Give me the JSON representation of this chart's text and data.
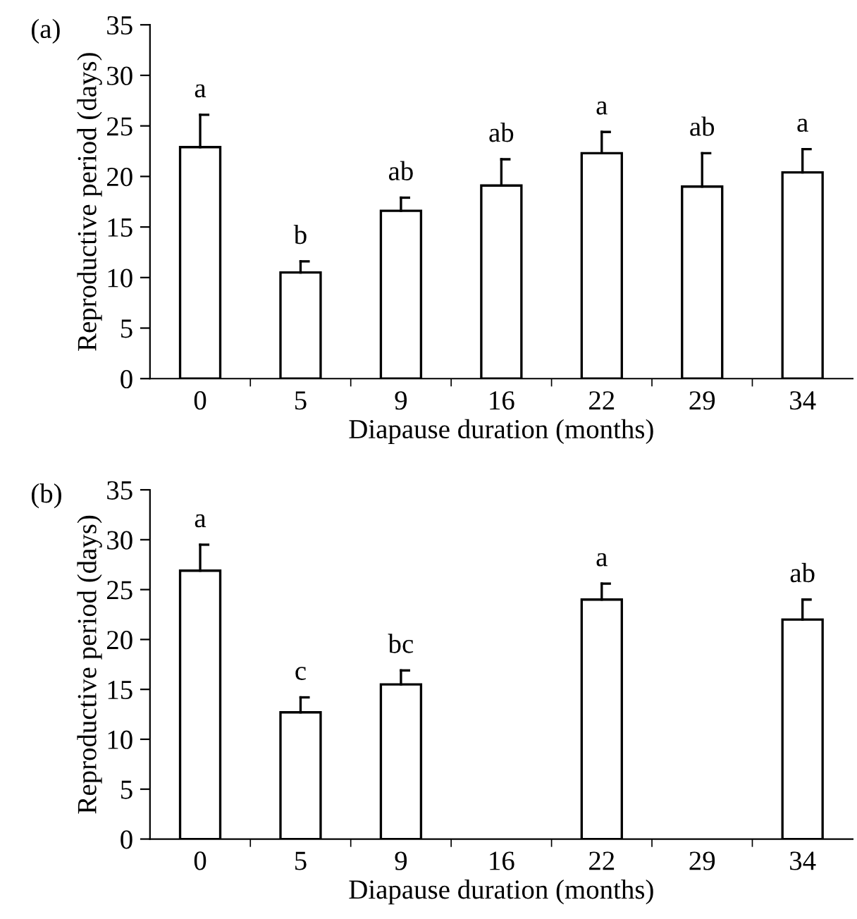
{
  "chart_data": [
    {
      "type": "bar",
      "title": "(a)",
      "xlabel": "Diapause duration (months)",
      "ylabel": "Reproductive period (days)",
      "categories": [
        "0",
        "5",
        "9",
        "16",
        "22",
        "29",
        "34"
      ],
      "values": [
        22.9,
        10.5,
        16.6,
        19.1,
        22.3,
        19.0,
        20.4
      ],
      "color": "#ffffff",
      "errors": [
        [
          22.9,
          26.1
        ],
        [
          10.5,
          11.6
        ],
        [
          16.6,
          17.9
        ],
        [
          19.1,
          21.7
        ],
        [
          22.3,
          24.4
        ],
        [
          19.0,
          22.3
        ],
        [
          20.4,
          22.7
        ]
      ],
      "ylim": [
        0,
        35
      ],
      "yticks": [
        0,
        5,
        10,
        15,
        20,
        25,
        30,
        35
      ],
      "grid": false,
      "annotations": [
        {
          "text": "a",
          "x": "0",
          "y": 26.1
        },
        {
          "text": "b",
          "x": "5",
          "y": 11.6
        },
        {
          "text": "ab",
          "x": "9",
          "y": 17.9
        },
        {
          "text": "ab",
          "x": "16",
          "y": 21.7
        },
        {
          "text": "a",
          "x": "22",
          "y": 24.4
        },
        {
          "text": "ab",
          "x": "29",
          "y": 22.3
        },
        {
          "text": "a",
          "x": "34",
          "y": 22.7
        }
      ]
    },
    {
      "type": "bar",
      "title": "(b)",
      "xlabel": "Diapause duration (months)",
      "ylabel": "Reproductive period (days)",
      "categories": [
        "0",
        "5",
        "9",
        "16",
        "22",
        "29",
        "34"
      ],
      "values": [
        26.9,
        12.7,
        15.5,
        null,
        24.0,
        null,
        22.0
      ],
      "color": "#ffffff",
      "errors": [
        [
          26.9,
          29.5
        ],
        [
          12.7,
          14.2
        ],
        [
          15.5,
          16.9
        ],
        null,
        [
          24.0,
          25.6
        ],
        null,
        [
          22.0,
          24.0
        ]
      ],
      "ylim": [
        0,
        35
      ],
      "yticks": [
        0,
        5,
        10,
        15,
        20,
        25,
        30,
        35
      ],
      "grid": false,
      "annotations": [
        {
          "text": "a",
          "x": "0",
          "y": 29.5
        },
        {
          "text": "c",
          "x": "5",
          "y": 14.2
        },
        {
          "text": "bc",
          "x": "9",
          "y": 16.9
        },
        {
          "text": "a",
          "x": "22",
          "y": 25.6
        },
        {
          "text": "ab",
          "x": "34",
          "y": 24.0
        }
      ]
    }
  ]
}
